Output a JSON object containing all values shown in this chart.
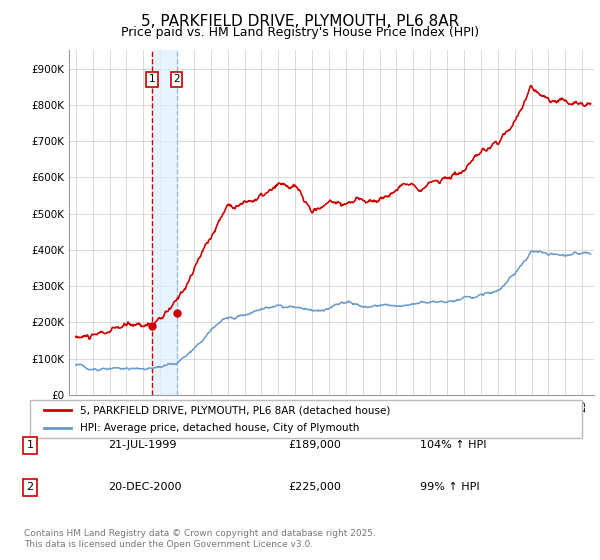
{
  "title": "5, PARKFIELD DRIVE, PLYMOUTH, PL6 8AR",
  "subtitle": "Price paid vs. HM Land Registry's House Price Index (HPI)",
  "ylim": [
    0,
    950000
  ],
  "yticks": [
    0,
    100000,
    200000,
    300000,
    400000,
    500000,
    600000,
    700000,
    800000,
    900000
  ],
  "ytick_labels": [
    "£0",
    "£100K",
    "£200K",
    "£300K",
    "£400K",
    "£500K",
    "£600K",
    "£700K",
    "£800K",
    "£900K"
  ],
  "line1_color": "#cc0000",
  "line2_color": "#6699cc",
  "vline1_color": "#cc0000",
  "vline2_color": "#99bbdd",
  "shade_color": "#ddeeff",
  "legend_label1": "5, PARKFIELD DRIVE, PLYMOUTH, PL6 8AR (detached house)",
  "legend_label2": "HPI: Average price, detached house, City of Plymouth",
  "sale1_year": 1999.54,
  "sale1_price": 189000,
  "sale2_year": 2000.97,
  "sale2_price": 225000,
  "table_data": [
    [
      "1",
      "21-JUL-1999",
      "£189,000",
      "104% ↑ HPI"
    ],
    [
      "2",
      "20-DEC-2000",
      "£225,000",
      "99% ↑ HPI"
    ]
  ],
  "footer": "Contains HM Land Registry data © Crown copyright and database right 2025.\nThis data is licensed under the Open Government Licence v3.0.",
  "bg_color": "#ffffff",
  "plot_bg_color": "#ffffff",
  "grid_color": "#cccccc",
  "title_fontsize": 11,
  "subtitle_fontsize": 9
}
